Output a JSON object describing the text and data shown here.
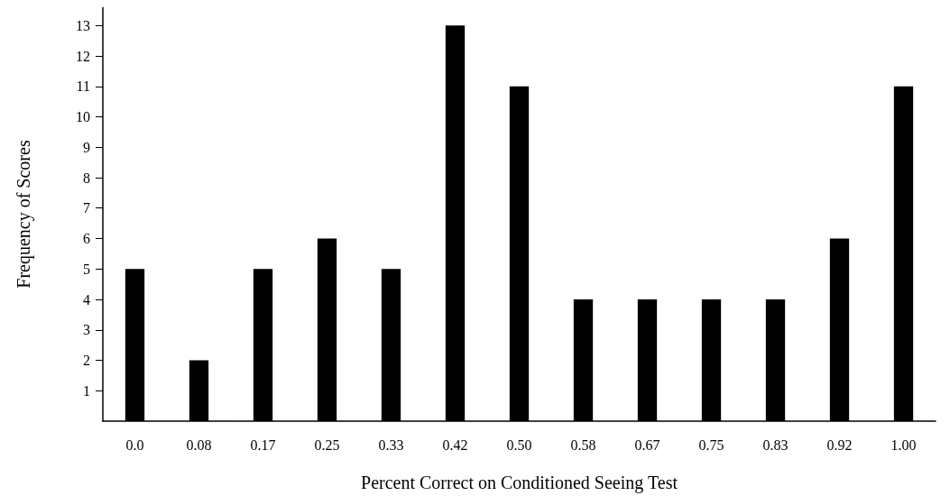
{
  "chart_data": {
    "type": "bar",
    "xlabel": "Percent Correct on Conditioned Seeing Test",
    "ylabel": "Frequency of Scores",
    "categories": [
      "0.0",
      "0.08",
      "0.17",
      "0.25",
      "0.33",
      "0.42",
      "0.50",
      "0.58",
      "0.67",
      "0.75",
      "0.83",
      "0.92",
      "1.00"
    ],
    "values": [
      5,
      2,
      5,
      6,
      5,
      13,
      11,
      4,
      4,
      4,
      4,
      6,
      11
    ],
    "color": "#000000",
    "ylim": [
      0,
      13.6
    ],
    "yticks": [
      1,
      2,
      3,
      4,
      5,
      6,
      7,
      8,
      9,
      10,
      11,
      12,
      13
    ],
    "grid": false
  }
}
